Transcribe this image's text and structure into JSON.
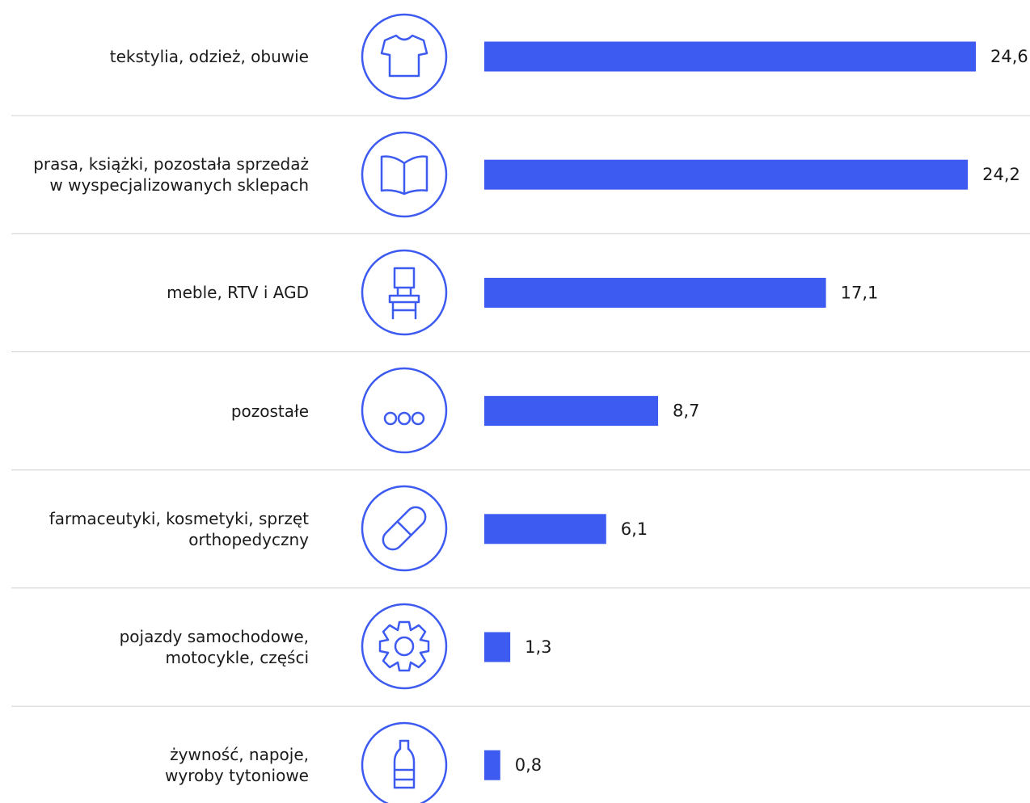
{
  "chart_data": {
    "type": "bar",
    "categories": [
      "tekstylia, odzież, obuwie",
      "prasa, książki, pozostała sprzedaż\nw wyspecjalizowanych sklepach",
      "meble, RTV i AGD",
      "pozostałe",
      "farmaceutyki, kosmetyki, sprzęt\northopedyczny",
      "pojazdy samochodowe,\nmotocykle, części",
      "żywność, napoje,\nwyroby tytoniowe"
    ],
    "values": [
      24.6,
      24.2,
      17.1,
      8.7,
      6.1,
      1.3,
      0.8
    ],
    "value_labels": [
      "24,6",
      "24,2",
      "17,1",
      "8,7",
      "6,1",
      "1,3",
      "0,8"
    ],
    "color": "#3d5af1"
  }
}
